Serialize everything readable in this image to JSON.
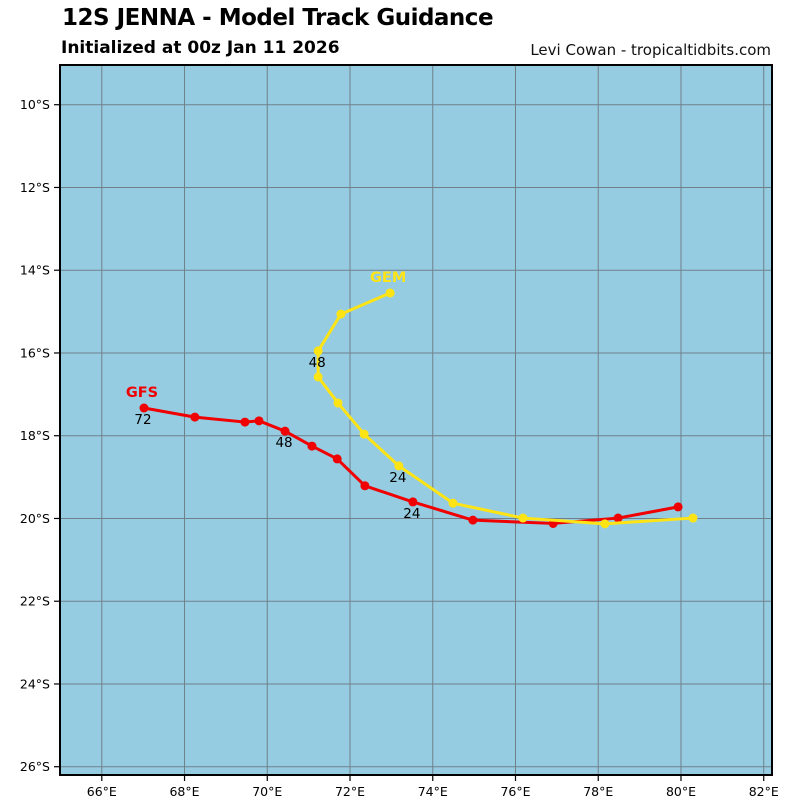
{
  "header": {
    "title": "12S JENNA - Model Track Guidance",
    "subtitle": "Initialized at 00z Jan 11 2026",
    "credit": "Levi Cowan - tropicaltidbits.com"
  },
  "chart_data": {
    "type": "line",
    "title": "12S JENNA - Model Track Guidance",
    "subtitle": "Initialized at 00z Jan 11 2026",
    "map": {
      "lon_min_e": 64.99,
      "lon_max_e": 82.2,
      "lat_min_s": 9.04,
      "lat_max_s": 26.2,
      "grid_interval_deg": 2,
      "x_ticks": {
        "values": [
          66,
          68,
          70,
          72,
          74,
          76,
          78,
          80,
          82
        ],
        "labels": [
          "66°E",
          "68°E",
          "70°E",
          "72°E",
          "74°E",
          "76°E",
          "78°E",
          "80°E",
          "82°E"
        ]
      },
      "y_ticks": {
        "values": [
          10,
          12,
          14,
          16,
          18,
          20,
          22,
          24,
          26
        ],
        "labels": [
          "10°S",
          "12°S",
          "14°S",
          "16°S",
          "18°S",
          "20°S",
          "22°S",
          "24°S",
          "26°S"
        ]
      },
      "ocean_color": "#95cce1",
      "grid_color": "#70808a",
      "border_color": "#000000",
      "tick_label_color": "#000000"
    },
    "series": [
      {
        "name": "GFS",
        "color": "#f00000",
        "hour_label_color": "#000000",
        "hour_labels": [
          24,
          48,
          72
        ],
        "points": [
          {
            "hour": 0,
            "lon_e": 79.93,
            "lat_s": 19.72
          },
          {
            "hour": 6,
            "lon_e": 78.48,
            "lat_s": 19.99
          },
          {
            "hour": 12,
            "lon_e": 76.91,
            "lat_s": 20.12
          },
          {
            "hour": 18,
            "lon_e": 74.97,
            "lat_s": 20.04
          },
          {
            "hour": 24,
            "lon_e": 73.52,
            "lat_s": 19.6
          },
          {
            "hour": 30,
            "lon_e": 72.36,
            "lat_s": 19.21
          },
          {
            "hour": 36,
            "lon_e": 71.69,
            "lat_s": 18.56
          },
          {
            "hour": 42,
            "lon_e": 71.08,
            "lat_s": 18.25
          },
          {
            "hour": 48,
            "lon_e": 70.43,
            "lat_s": 17.89
          },
          {
            "hour": 54,
            "lon_e": 69.8,
            "lat_s": 17.64
          },
          {
            "hour": 60,
            "lon_e": 69.46,
            "lat_s": 17.67
          },
          {
            "hour": 66,
            "lon_e": 68.25,
            "lat_s": 17.55
          },
          {
            "hour": 72,
            "lon_e": 67.02,
            "lat_s": 17.33
          }
        ]
      },
      {
        "name": "GEM",
        "color": "#ffe415",
        "hour_label_color": "#000000",
        "hour_labels": [
          24,
          48
        ],
        "points": [
          {
            "hour": 0,
            "lon_e": 80.29,
            "lat_s": 19.99
          },
          {
            "hour": 6,
            "lon_e": 78.16,
            "lat_s": 20.13
          },
          {
            "hour": 12,
            "lon_e": 76.18,
            "lat_s": 19.99
          },
          {
            "hour": 18,
            "lon_e": 74.49,
            "lat_s": 19.63
          },
          {
            "hour": 24,
            "lon_e": 73.18,
            "lat_s": 18.73
          },
          {
            "hour": 30,
            "lon_e": 72.34,
            "lat_s": 17.96
          },
          {
            "hour": 36,
            "lon_e": 71.71,
            "lat_s": 17.21
          },
          {
            "hour": 42,
            "lon_e": 71.23,
            "lat_s": 16.58
          },
          {
            "hour": 48,
            "lon_e": 71.23,
            "lat_s": 15.95
          },
          {
            "hour": 54,
            "lon_e": 71.78,
            "lat_s": 15.06
          },
          {
            "hour": 60,
            "lon_e": 72.97,
            "lat_s": 14.55
          }
        ]
      }
    ]
  }
}
